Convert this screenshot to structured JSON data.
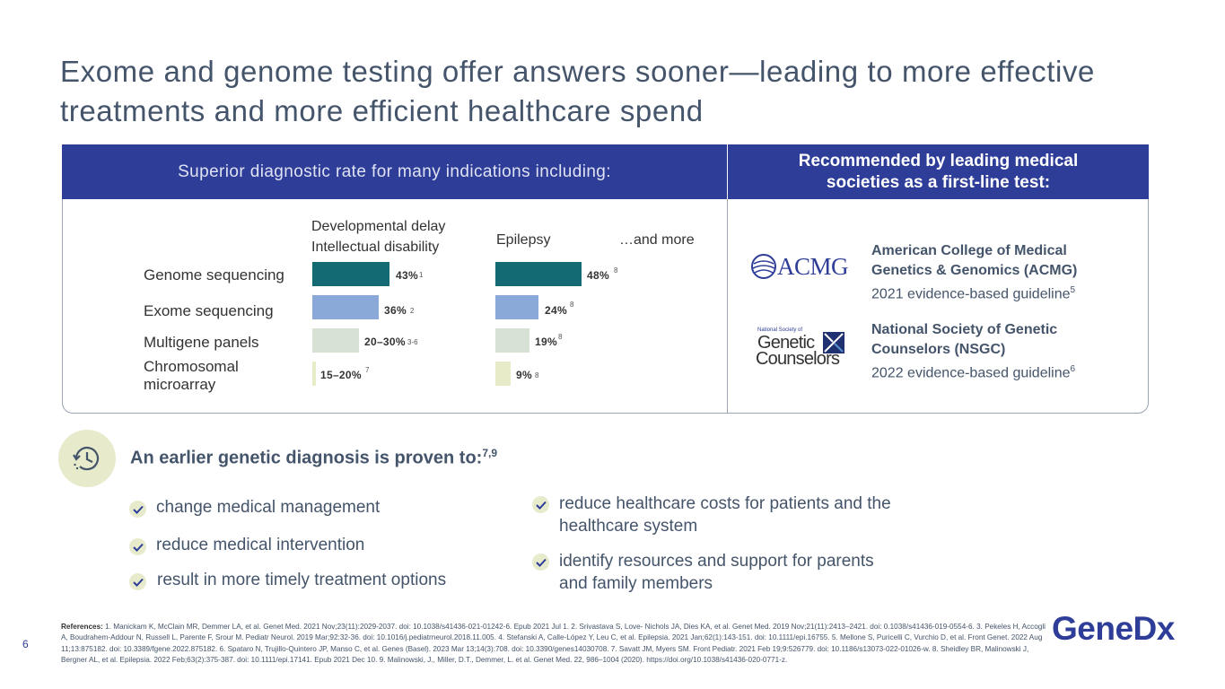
{
  "title": "Exome and genome testing offer answers sooner—leading to more effective treatments and more efficient healthcare spend",
  "header": {
    "left": "Superior diagnostic rate for many indications including:",
    "right": "Recommended by leading medical societies as a first-line test:"
  },
  "chart": {
    "col_dd_line1": "Developmental delay",
    "col_dd_line2": "Intellectual disability",
    "col_epilepsy": "Epilepsy",
    "col_more": "…and more",
    "rows": [
      {
        "label": "Genome sequencing",
        "dd": "43%",
        "dd_ref": "1",
        "ep": "48%",
        "ep_ref": "8"
      },
      {
        "label": "Exome sequencing",
        "dd": "36%",
        "dd_ref": "2",
        "ep": "24%",
        "ep_ref": "8"
      },
      {
        "label": "Multigene panels",
        "dd": "20–30%",
        "dd_ref": "3-6",
        "ep": "19%",
        "ep_ref": "8"
      },
      {
        "label_line1": "Chromosomal",
        "label_line2": "microarray",
        "dd": "15–20%",
        "dd_ref": "7",
        "ep": "9%",
        "ep_ref": "8"
      }
    ]
  },
  "chart_data": {
    "type": "bar",
    "categories": [
      "Genome sequencing",
      "Exome sequencing",
      "Multigene panels",
      "Chromosomal microarray"
    ],
    "series": [
      {
        "name": "Developmental delay Intellectual disability",
        "values": [
          43,
          36,
          25,
          17.5
        ]
      },
      {
        "name": "Epilepsy",
        "values": [
          48,
          24,
          19,
          9
        ]
      }
    ],
    "colors": [
      "#136a72",
      "#8aa8d8",
      "#d8e2d4",
      "#e7ebc7"
    ]
  },
  "orgs": [
    {
      "logo": "ACMG",
      "name_line1": "American College of Medical",
      "name_line2": "Genetics & Genomics (ACMG)",
      "guideline": "2021 evidence-based guideline",
      "ref": "5"
    },
    {
      "logo_line1": "National Society of",
      "logo_line2": "Genetic",
      "logo_line3": "Counselors",
      "name_line1": "National Society of Genetic",
      "name_line2": "Counselors (NSGC)",
      "guideline": "2022 evidence-based guideline",
      "ref": "6"
    }
  ],
  "diagnosis": {
    "heading": "An earlier genetic diagnosis is proven to:",
    "heading_ref": "7,9",
    "left": [
      "change medical management",
      "reduce medical intervention",
      "result in more timely treatment options"
    ],
    "right": [
      {
        "line1": "reduce healthcare costs for patients and the",
        "line2": "healthcare system"
      },
      {
        "line1": "identify resources and support for parents",
        "line2": "and family members"
      }
    ]
  },
  "page_number": "6",
  "references_label": "References:",
  "references": "1. Manickam K, McClain MR, Demmer LA, et al. Genet Med. 2021 Nov;23(11):2029-2037. doi: 10.1038/s41436-021-01242-6. Epub 2021 Jul 1. 2. Srivastava S, Love- Nichols JA, Dies KA, et al. Genet Med. 2019 Nov;21(11):2413–2421. doi: 0.1038/s41436-019-0554-6. 3. Pekeles H, Accogli A, Boudrahem-Addour N, Russell L, Parente F, Srour M. Pediatr Neurol. 2019 Mar;92:32-36. doi: 10.1016/j.pediatrneurol.2018.11.005. 4. Stefanski A, Calle-López Y, Leu C, et al. Epilepsia. 2021 Jan;62(1):143-151. doi: 10.1111/epi.16755. 5. Mellone S, Puricelli C, Vurchio D, et al. Front Genet. 2022 Aug 11;13:875182. doi: 10.3389/fgene.2022.875182. 6. Spataro N, Trujillo-Quintero JP, Manso C, et al. Genes (Basel). 2023 Mar 13;14(3):708. doi: 10.3390/genes14030708. 7. Savatt JM, Myers SM. Front Pediatr. 2021 Feb 19;9:526779. doi: 10.1186/s13073-022-01026-w. 8. Sheidley BR, Malinowski J, Bergner AL, et al. Epilepsia. 2022 Feb;63(2):375-387. doi: 10.1111/epi.17141. Epub 2021 Dec 10. 9. Malinowski, J., Miller, D.T., Demmer, L. et al. Genet Med. 22, 986–1004 (2020). https://doi.org/10.1038/s41436-020-0771-z.",
  "logo": "GeneDx"
}
